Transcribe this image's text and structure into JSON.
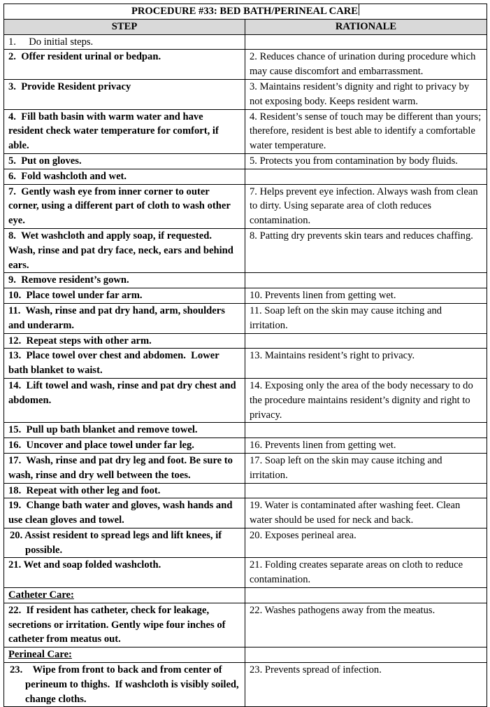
{
  "document": {
    "title": "PROCEDURE #33:  BED BATH/PERINEAL CARE",
    "columns": {
      "step": "STEP",
      "rationale": "RATIONALE"
    },
    "rows": [
      {
        "step": "1.     Do initial steps.",
        "rationale": "",
        "bold": false
      },
      {
        "step": "2.  Offer resident urinal or bedpan.",
        "rationale": "2. Reduces chance of urination during procedure which may cause discomfort and embarrassment."
      },
      {
        "step": "3.  Provide Resident privacy",
        "rationale": "3. Maintains resident’s dignity and right to privacy by not exposing body.  Keeps resident warm."
      },
      {
        "step": "4.  Fill bath basin with warm water and have resident check water temperature for comfort, if able.",
        "rationale": "4. Resident’s sense of touch may be different than yours; therefore, resident is best able to identify a comfortable water temperature."
      },
      {
        "step": "5.  Put on gloves.",
        "rationale": "5. Protects you from contamination by body fluids."
      },
      {
        "step": "6.  Fold washcloth and wet.",
        "rationale": ""
      },
      {
        "step": "7.  Gently wash eye from inner corner to outer corner, using a different part of cloth to wash other eye.",
        "rationale": "7. Helps prevent eye infection.  Always wash from clean to dirty.  Using separate area of cloth reduces contamination."
      },
      {
        "step": "8.  Wet washcloth and apply soap, if requested.  Wash, rinse and pat dry face, neck, ears and behind ears.",
        "rationale": "8. Patting dry prevents skin tears and reduces chaffing."
      },
      {
        "step": "9.  Remove resident’s gown.",
        "rationale": ""
      },
      {
        "step": "10.  Place towel under far arm.",
        "rationale": "10. Prevents linen from getting wet."
      },
      {
        "step": "11.  Wash, rinse and pat dry hand, arm, shoulders and underarm.",
        "rationale": "11. Soap left on the skin may cause itching and irritation."
      },
      {
        "step": "12.  Repeat steps with other arm.",
        "rationale": ""
      },
      {
        "step": "13.  Place towel over chest and abdomen.  Lower bath blanket to waist.",
        "rationale": "13. Maintains resident’s right to privacy."
      },
      {
        "step": "14.  Lift towel and wash, rinse and pat dry chest and abdomen.",
        "rationale": "14. Exposing only the area of the body necessary to do the procedure maintains resident’s dignity and right to privacy."
      },
      {
        "step": "15.  Pull up bath blanket and remove towel.",
        "rationale": ""
      },
      {
        "step": "16.  Uncover and place towel under far leg.",
        "rationale": "16. Prevents linen from getting wet."
      },
      {
        "step": "17.  Wash, rinse and pat dry leg and foot. Be sure to wash, rinse and dry well between the toes.",
        "rationale": "17. Soap left on the skin may cause itching and irritation."
      },
      {
        "step": "18.  Repeat with other leg and foot.",
        "rationale": ""
      },
      {
        "step": "19.  Change bath water and gloves, wash hands and use clean gloves and towel.",
        "rationale": "19. Water is contaminated after washing feet.  Clean water should be used for neck and back."
      },
      {
        "step": "20. Assist resident to spread legs and lift knees, if possible.",
        "rationale": "20. Exposes perineal area.",
        "hang": true
      },
      {
        "step": "21. Wet and soap folded washcloth.",
        "rationale": "21. Folding creates separate areas on cloth to reduce contamination."
      },
      {
        "section": "Catheter Care:"
      },
      {
        "step": "22.  If resident has catheter, check for leakage, secretions or irritation. Gently wipe four inches of catheter from meatus out.",
        "rationale": "22.  Washes pathogens away from the meatus."
      },
      {
        "section": "Perineal Care:"
      },
      {
        "step": "23.    Wipe from front to back and from center of perineum to thighs.  If washcloth is visibly soiled, change cloths.",
        "rationale": "23. Prevents spread of infection.",
        "hang": true
      }
    ]
  }
}
